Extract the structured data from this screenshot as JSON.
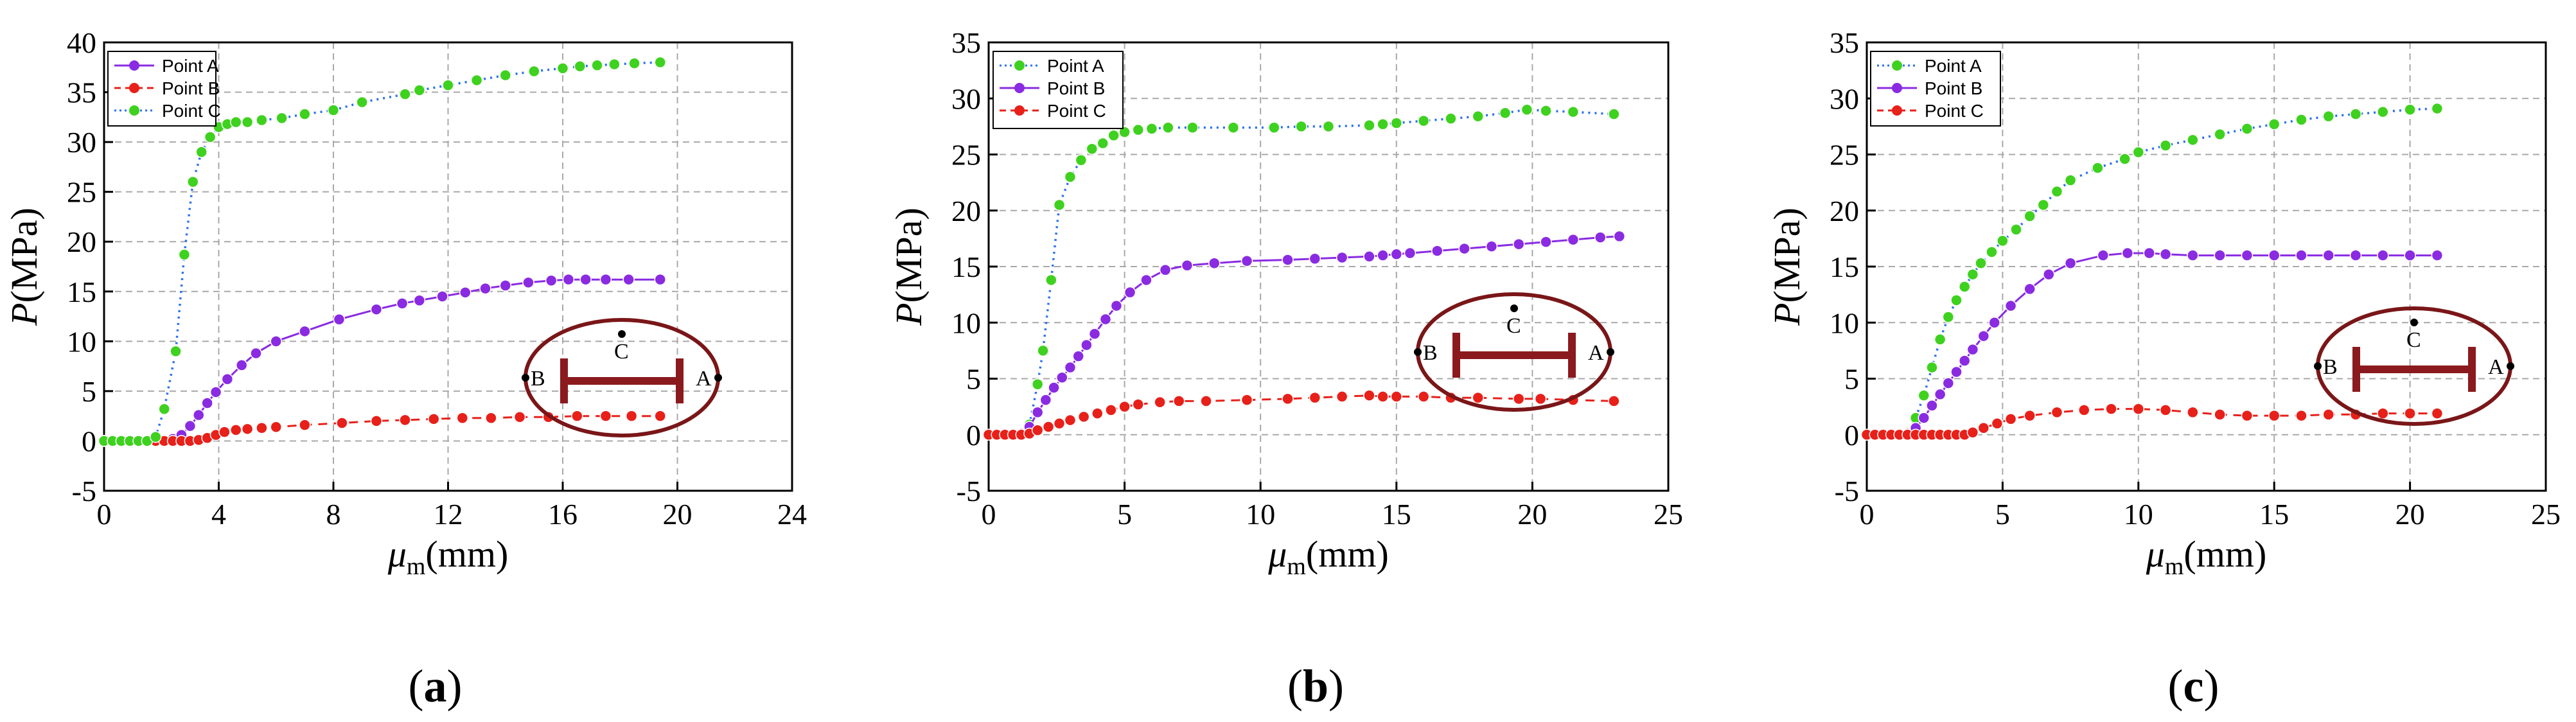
{
  "chart_data": [
    {
      "id": "a",
      "type": "line",
      "caption": "a",
      "xlabel_sym": "μ",
      "xlabel_sub": "m",
      "xlabel_unit": "(mm)",
      "ylabel_sym": "P",
      "ylabel_unit": "(MPa)",
      "xlim": [
        0,
        24
      ],
      "ylim": [
        -5,
        40
      ],
      "xticks": [
        0,
        4,
        8,
        12,
        16,
        20,
        24
      ],
      "yticks": [
        -5,
        0,
        5,
        10,
        15,
        20,
        25,
        30,
        35,
        40
      ],
      "grid": true,
      "series": [
        {
          "name": "Point A",
          "color": "#8a2be2",
          "style": "solid",
          "x": [
            0,
            0.3,
            0.6,
            0.9,
            1.2,
            1.5,
            1.8,
            2.1,
            2.4,
            2.7,
            3.0,
            3.3,
            3.6,
            3.9,
            4.3,
            4.8,
            5.3,
            6.0,
            7.0,
            8.2,
            9.5,
            10.4,
            11.0,
            11.8,
            12.6,
            13.3,
            14.0,
            14.8,
            15.6,
            16.2,
            16.8,
            17.5,
            18.3,
            19.4
          ],
          "y": [
            0,
            0,
            0,
            0,
            0,
            0,
            0,
            0,
            0.2,
            0.6,
            1.5,
            2.6,
            3.8,
            4.9,
            6.2,
            7.6,
            8.8,
            10.0,
            11.0,
            12.2,
            13.2,
            13.8,
            14.1,
            14.5,
            14.9,
            15.3,
            15.6,
            15.9,
            16.1,
            16.2,
            16.2,
            16.2,
            16.2,
            16.2
          ]
        },
        {
          "name": "Point B",
          "color": "#e8201a",
          "style": "dashed",
          "x": [
            0,
            0.3,
            0.6,
            0.9,
            1.2,
            1.5,
            1.8,
            2.1,
            2.4,
            2.7,
            3.0,
            3.3,
            3.6,
            3.9,
            4.2,
            4.6,
            5.0,
            5.5,
            6.0,
            7.0,
            8.3,
            9.5,
            10.5,
            11.5,
            12.5,
            13.5,
            14.5,
            15.5,
            16.5,
            17.5,
            18.4,
            19.4
          ],
          "y": [
            0,
            0,
            0,
            0,
            0,
            0,
            0,
            0,
            0,
            0,
            0,
            0.1,
            0.3,
            0.6,
            0.9,
            1.1,
            1.2,
            1.3,
            1.4,
            1.6,
            1.8,
            2.0,
            2.1,
            2.2,
            2.3,
            2.3,
            2.4,
            2.4,
            2.5,
            2.5,
            2.5,
            2.5
          ]
        },
        {
          "name": "Point C",
          "color": "#3fd11f",
          "style": "dotted",
          "lineColor": "#2a6ff0",
          "x": [
            0,
            0.3,
            0.6,
            0.9,
            1.2,
            1.5,
            1.8,
            2.1,
            2.5,
            2.8,
            3.1,
            3.4,
            3.7,
            4.0,
            4.3,
            4.6,
            5.0,
            5.5,
            6.2,
            7.0,
            8.0,
            9.0,
            10.5,
            11.0,
            12.0,
            13.0,
            14.0,
            15.0,
            16.0,
            16.6,
            17.2,
            17.8,
            18.5,
            19.4
          ],
          "y": [
            0,
            0,
            0,
            0,
            0,
            0,
            0.4,
            3.2,
            9.0,
            18.7,
            26.0,
            29.0,
            30.5,
            31.5,
            31.8,
            32.0,
            32.0,
            32.2,
            32.4,
            32.8,
            33.2,
            34.0,
            34.8,
            35.2,
            35.7,
            36.2,
            36.7,
            37.1,
            37.4,
            37.6,
            37.7,
            37.8,
            37.9,
            38.0
          ]
        }
      ],
      "inset": {
        "left": "B",
        "right": "A",
        "center": "C"
      }
    },
    {
      "id": "b",
      "type": "line",
      "caption": "b",
      "xlabel_sym": "μ",
      "xlabel_sub": "m",
      "xlabel_unit": "(mm)",
      "ylabel_sym": "P",
      "ylabel_unit": "(MPa)",
      "xlim": [
        0,
        25
      ],
      "ylim": [
        -5,
        35
      ],
      "xticks": [
        0,
        5,
        10,
        15,
        20,
        25
      ],
      "yticks": [
        -5,
        0,
        5,
        10,
        15,
        20,
        25,
        30,
        35
      ],
      "grid": true,
      "series": [
        {
          "name": "Point A",
          "color": "#3fd11f",
          "style": "dotted",
          "lineColor": "#2a6ff0",
          "x": [
            0,
            0.3,
            0.6,
            0.9,
            1.2,
            1.5,
            1.8,
            2.0,
            2.3,
            2.6,
            3.0,
            3.4,
            3.8,
            4.2,
            4.6,
            5.0,
            5.5,
            6.0,
            6.6,
            7.5,
            9.0,
            10.5,
            11.5,
            12.5,
            14.0,
            14.5,
            15.0,
            16.0,
            17.0,
            18.0,
            19.0,
            19.8,
            20.5,
            21.5,
            23.0
          ],
          "y": [
            0,
            0,
            0,
            0,
            0,
            0.9,
            4.5,
            7.5,
            13.8,
            20.5,
            23.0,
            24.5,
            25.5,
            26.0,
            26.7,
            27.0,
            27.2,
            27.3,
            27.4,
            27.4,
            27.4,
            27.4,
            27.5,
            27.5,
            27.6,
            27.7,
            27.8,
            28.0,
            28.2,
            28.4,
            28.7,
            29.0,
            28.9,
            28.8,
            28.6
          ]
        },
        {
          "name": "Point B",
          "color": "#8a2be2",
          "style": "solid",
          "x": [
            0,
            0.3,
            0.6,
            0.9,
            1.2,
            1.5,
            1.8,
            2.1,
            2.4,
            2.7,
            3.0,
            3.3,
            3.6,
            3.9,
            4.3,
            4.7,
            5.2,
            5.8,
            6.5,
            7.3,
            8.3,
            9.5,
            11.0,
            12.0,
            13.0,
            14.0,
            14.5,
            15.0,
            15.5,
            16.5,
            17.5,
            18.5,
            19.5,
            20.5,
            21.5,
            22.5,
            23.2
          ],
          "y": [
            0,
            0,
            0,
            0,
            0.1,
            0.7,
            2.0,
            3.1,
            4.2,
            5.1,
            6.0,
            7.0,
            8.0,
            9.0,
            10.3,
            11.5,
            12.7,
            13.8,
            14.7,
            15.1,
            15.3,
            15.5,
            15.6,
            15.7,
            15.8,
            15.9,
            16.0,
            16.1,
            16.2,
            16.4,
            16.6,
            16.8,
            17.0,
            17.2,
            17.4,
            17.6,
            17.7
          ]
        },
        {
          "name": "Point C",
          "color": "#e8201a",
          "style": "dashed",
          "x": [
            0,
            0.3,
            0.6,
            0.9,
            1.2,
            1.5,
            1.8,
            2.2,
            2.6,
            3.0,
            3.5,
            4.0,
            4.5,
            5.0,
            5.5,
            6.3,
            7.0,
            8.0,
            9.5,
            11.0,
            12.0,
            13.0,
            14.0,
            14.5,
            15.0,
            16.0,
            17.0,
            18.0,
            19.5,
            20.3,
            21.5,
            23.0
          ],
          "y": [
            0,
            0,
            0,
            0,
            0,
            0.1,
            0.4,
            0.7,
            1.0,
            1.3,
            1.6,
            1.9,
            2.2,
            2.5,
            2.7,
            2.9,
            3.0,
            3.0,
            3.1,
            3.2,
            3.3,
            3.4,
            3.5,
            3.4,
            3.4,
            3.4,
            3.3,
            3.3,
            3.2,
            3.2,
            3.1,
            3.0
          ]
        }
      ],
      "inset": {
        "left": "B",
        "right": "A",
        "center": "C"
      }
    },
    {
      "id": "c",
      "type": "line",
      "caption": "c",
      "xlabel_sym": "μ",
      "xlabel_sub": "m",
      "xlabel_unit": "(mm)",
      "ylabel_sym": "P",
      "ylabel_unit": "(MPa)",
      "xlim": [
        0,
        25
      ],
      "ylim": [
        -5,
        35
      ],
      "xticks": [
        0,
        5,
        10,
        15,
        20,
        25
      ],
      "yticks": [
        -5,
        0,
        5,
        10,
        15,
        20,
        25,
        30,
        35
      ],
      "grid": true,
      "series": [
        {
          "name": "Point A",
          "color": "#3fd11f",
          "style": "dotted",
          "lineColor": "#2a6ff0",
          "x": [
            0,
            0.3,
            0.6,
            0.9,
            1.2,
            1.5,
            1.8,
            2.1,
            2.4,
            2.7,
            3.0,
            3.3,
            3.6,
            3.9,
            4.2,
            4.6,
            5.0,
            5.5,
            6.0,
            6.5,
            7.0,
            7.5,
            8.5,
            9.5,
            10.0,
            11.0,
            12.0,
            13.0,
            14.0,
            15.0,
            16.0,
            17.0,
            18.0,
            19.0,
            20.0,
            21.0
          ],
          "y": [
            0,
            0,
            0,
            0,
            0,
            0.2,
            1.5,
            3.5,
            6.0,
            8.5,
            10.5,
            12.0,
            13.2,
            14.3,
            15.3,
            16.3,
            17.3,
            18.3,
            19.5,
            20.5,
            21.7,
            22.7,
            23.8,
            24.6,
            25.2,
            25.8,
            26.3,
            26.8,
            27.3,
            27.7,
            28.1,
            28.4,
            28.6,
            28.8,
            29.0,
            29.1
          ]
        },
        {
          "name": "Point B",
          "color": "#8a2be2",
          "style": "solid",
          "x": [
            0,
            0.3,
            0.6,
            0.9,
            1.2,
            1.5,
            1.8,
            2.1,
            2.4,
            2.7,
            3.0,
            3.3,
            3.6,
            3.9,
            4.3,
            4.7,
            5.3,
            6.0,
            6.7,
            7.5,
            8.7,
            9.6,
            10.4,
            11.0,
            12.0,
            13.0,
            14.0,
            15.0,
            16.0,
            17.0,
            18.0,
            19.0,
            20.0,
            21.0
          ],
          "y": [
            0,
            0,
            0,
            0,
            0,
            0.1,
            0.6,
            1.5,
            2.6,
            3.6,
            4.6,
            5.6,
            6.6,
            7.6,
            8.8,
            10.0,
            11.5,
            13.0,
            14.3,
            15.3,
            16.0,
            16.2,
            16.2,
            16.1,
            16.0,
            16.0,
            16.0,
            16.0,
            16.0,
            16.0,
            16.0,
            16.0,
            16.0,
            16.0
          ]
        },
        {
          "name": "Point C",
          "color": "#e8201a",
          "style": "dashed",
          "x": [
            0,
            0.3,
            0.6,
            0.9,
            1.2,
            1.5,
            1.8,
            2.1,
            2.4,
            2.7,
            3.0,
            3.3,
            3.6,
            3.9,
            4.3,
            4.8,
            5.3,
            6.0,
            7.0,
            8.0,
            9.0,
            10.0,
            11.0,
            12.0,
            13.0,
            14.0,
            15.0,
            16.0,
            17.0,
            18.0,
            19.0,
            20.0,
            21.0
          ],
          "y": [
            0,
            0,
            0,
            0,
            0,
            0,
            0,
            0,
            0,
            0,
            0,
            0,
            0,
            0.2,
            0.6,
            1.0,
            1.4,
            1.7,
            2.0,
            2.2,
            2.3,
            2.3,
            2.2,
            2.0,
            1.8,
            1.7,
            1.7,
            1.7,
            1.8,
            1.8,
            1.9,
            1.9,
            1.9
          ]
        }
      ],
      "inset": {
        "left": "B",
        "right": "A",
        "center": "C"
      }
    }
  ]
}
